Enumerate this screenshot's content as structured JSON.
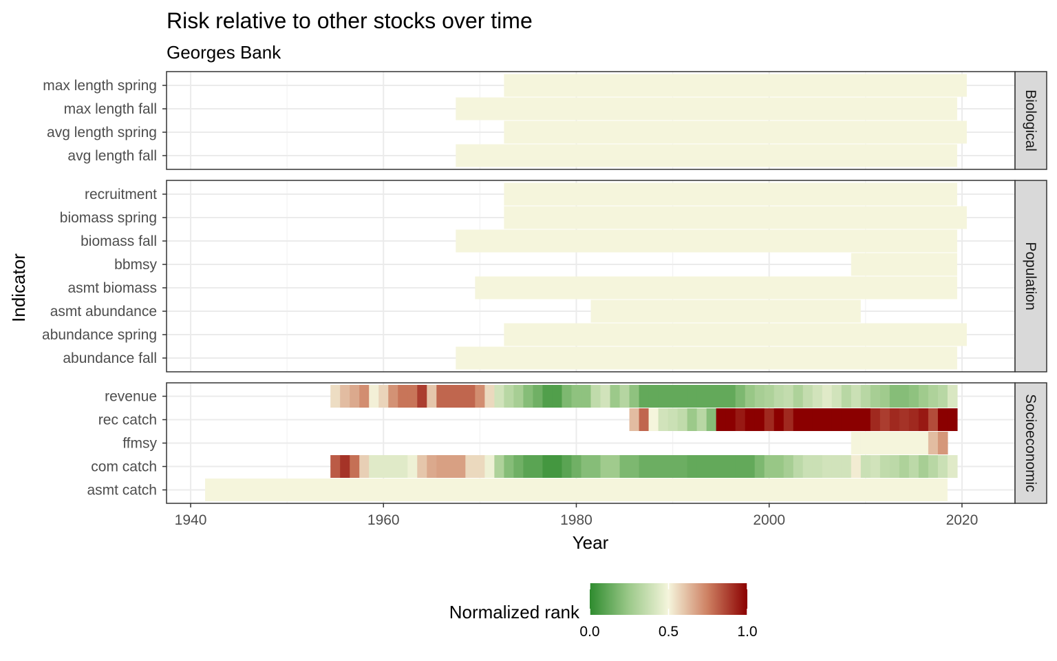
{
  "chart_data": {
    "type": "heatmap",
    "title": "Risk relative to other stocks over time",
    "subtitle": "Georges Bank",
    "xlabel": "Year",
    "ylabel": "Indicator",
    "xlim": [
      1937.5,
      2025.5
    ],
    "x_ticks": [
      1940,
      1960,
      1980,
      2000,
      2020
    ],
    "grid": true,
    "legend": {
      "title": "Normalized rank",
      "position": "bottom",
      "ticks": [
        "0.0",
        "0.5",
        "1.0"
      ],
      "low_color": "#2e8b2e",
      "mid_color": "#f5f5dc",
      "high_color": "#8b0000"
    },
    "panels": [
      {
        "name": "Biological",
        "rows": [
          {
            "label": "max length spring",
            "segments": [
              {
                "start": 1973,
                "end": 2020,
                "value": 0.5
              }
            ]
          },
          {
            "label": "max length fall",
            "segments": [
              {
                "start": 1968,
                "end": 2019,
                "value": 0.5
              }
            ]
          },
          {
            "label": "avg length spring",
            "segments": [
              {
                "start": 1973,
                "end": 2020,
                "value": 0.5
              }
            ]
          },
          {
            "label": "avg length fall",
            "segments": [
              {
                "start": 1968,
                "end": 2019,
                "value": 0.5
              }
            ]
          }
        ]
      },
      {
        "name": "Population",
        "rows": [
          {
            "label": "recruitment",
            "segments": [
              {
                "start": 1973,
                "end": 2019,
                "value": 0.5
              }
            ]
          },
          {
            "label": "biomass spring",
            "segments": [
              {
                "start": 1973,
                "end": 2020,
                "value": 0.5
              }
            ]
          },
          {
            "label": "biomass fall",
            "segments": [
              {
                "start": 1968,
                "end": 2019,
                "value": 0.5
              }
            ]
          },
          {
            "label": "bbmsy",
            "segments": [
              {
                "start": 2009,
                "end": 2019,
                "value": 0.5
              }
            ]
          },
          {
            "label": "asmt biomass",
            "segments": [
              {
                "start": 1970,
                "end": 2019,
                "value": 0.5
              }
            ]
          },
          {
            "label": "asmt abundance",
            "segments": [
              {
                "start": 1982,
                "end": 2009,
                "value": 0.5
              }
            ]
          },
          {
            "label": "abundance spring",
            "segments": [
              {
                "start": 1973,
                "end": 2020,
                "value": 0.5
              }
            ]
          },
          {
            "label": "abundance fall",
            "segments": [
              {
                "start": 1968,
                "end": 2019,
                "value": 0.5
              }
            ]
          }
        ]
      },
      {
        "name": "Socioeconomic",
        "rows": [
          {
            "label": "revenue",
            "start": 1955,
            "values": [
              0.55,
              0.62,
              0.66,
              0.72,
              0.51,
              0.57,
              0.71,
              0.77,
              0.77,
              0.88,
              0.6,
              0.8,
              0.8,
              0.8,
              0.8,
              0.72,
              0.56,
              0.4,
              0.33,
              0.28,
              0.2,
              0.15,
              0.08,
              0.08,
              0.18,
              0.22,
              0.22,
              0.35,
              0.4,
              0.25,
              0.32,
              0.22,
              0.12,
              0.12,
              0.12,
              0.12,
              0.12,
              0.12,
              0.12,
              0.12,
              0.12,
              0.12,
              0.18,
              0.24,
              0.28,
              0.3,
              0.34,
              0.36,
              0.3,
              0.36,
              0.4,
              0.44,
              0.4,
              0.33,
              0.38,
              0.33,
              0.28,
              0.26,
              0.2,
              0.2,
              0.22,
              0.26,
              0.3,
              0.33,
              0.42
            ]
          },
          {
            "label": "rec catch",
            "start": 1986,
            "values": [
              0.62,
              0.8,
              0.5,
              0.4,
              0.38,
              0.35,
              0.25,
              0.33,
              0.2,
              1.0,
              1.0,
              0.95,
              1.0,
              1.0,
              0.92,
              1.0,
              0.92,
              1.0,
              1.0,
              1.0,
              1.0,
              1.0,
              1.0,
              1.0,
              1.0,
              0.92,
              0.88,
              0.92,
              0.9,
              0.92,
              0.95,
              0.85,
              1.0,
              1.0
            ]
          },
          {
            "label": "ffmsy",
            "start": 2009,
            "values": [
              0.5,
              0.5,
              0.5,
              0.5,
              0.5,
              0.5,
              0.5,
              0.5,
              0.62,
              0.7
            ]
          },
          {
            "label": "com catch",
            "start": 1955,
            "values": [
              0.82,
              0.9,
              0.78,
              0.58,
              0.44,
              0.44,
              0.44,
              0.44,
              0.48,
              0.6,
              0.66,
              0.68,
              0.68,
              0.68,
              0.56,
              0.56,
              0.48,
              0.3,
              0.2,
              0.15,
              0.1,
              0.1,
              0.05,
              0.05,
              0.1,
              0.15,
              0.2,
              0.2,
              0.26,
              0.26,
              0.18,
              0.18,
              0.14,
              0.14,
              0.14,
              0.14,
              0.14,
              0.12,
              0.12,
              0.12,
              0.12,
              0.12,
              0.12,
              0.12,
              0.18,
              0.24,
              0.24,
              0.28,
              0.34,
              0.38,
              0.38,
              0.4,
              0.4,
              0.4,
              0.52,
              0.38,
              0.4,
              0.35,
              0.34,
              0.3,
              0.34,
              0.28,
              0.33,
              0.38,
              0.44
            ]
          },
          {
            "label": "asmt catch",
            "segments": [
              {
                "start": 1942,
                "end": 2018,
                "value": 0.5
              }
            ]
          }
        ]
      }
    ]
  }
}
